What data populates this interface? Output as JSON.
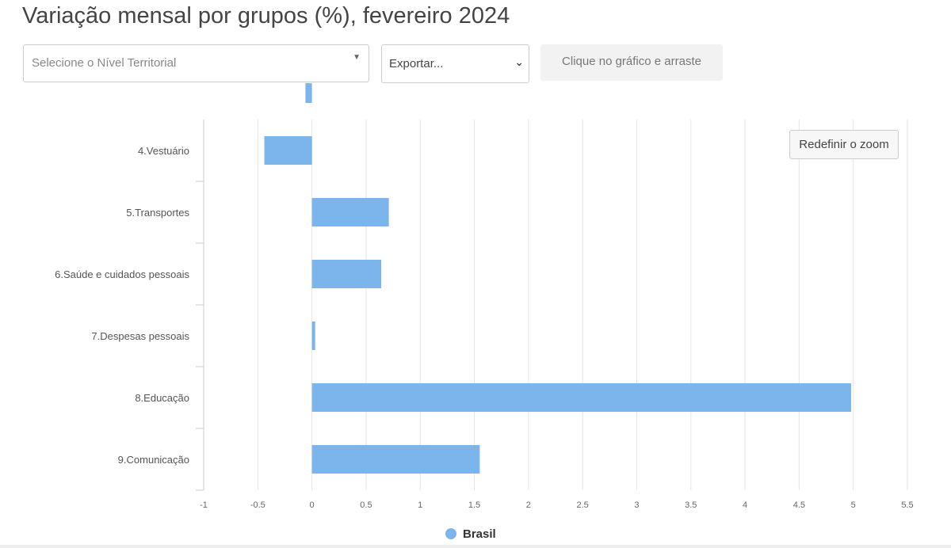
{
  "title": "Variação mensal por grupos (%), fevereiro 2024",
  "controls": {
    "territorial_placeholder": "Selecione o Nível Territorial",
    "export_label": "Exportar...",
    "zoom_hint": "Clique no gráfico e arraste",
    "reset_zoom": "Redefinir o zoom"
  },
  "chart_data": {
    "type": "bar",
    "orientation": "horizontal",
    "categories": [
      "",
      "4.Vestuário",
      "5.Transportes",
      "6.Saúde e cuidados pessoais",
      "7.Despesas pessoais",
      "8.Educação",
      "9.Comunicação"
    ],
    "series": [
      {
        "name": "Brasil",
        "values": [
          -0.06,
          -0.44,
          0.71,
          0.64,
          0.03,
          4.98,
          1.55
        ],
        "color": "#7cb5ec"
      }
    ],
    "xlim": [
      -1,
      5.5
    ],
    "xticks": [
      "-1",
      "-0.5",
      "0",
      "0.5",
      "1",
      "1.5",
      "2",
      "2.5",
      "3",
      "3.5",
      "4",
      "4.5",
      "5",
      "5.5"
    ],
    "grid": true,
    "legend": "bottom-center"
  }
}
